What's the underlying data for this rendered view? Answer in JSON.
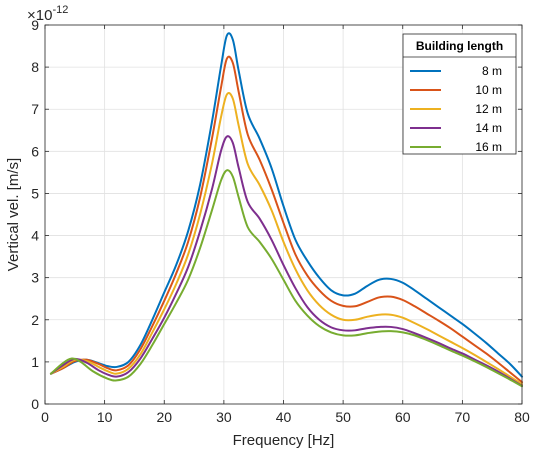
{
  "chart_data": {
    "type": "line",
    "title": "",
    "xlabel": "Frequency [Hz]",
    "ylabel": "Vertical vel. [m/s]",
    "y_exponent_label": "×10",
    "y_exponent_power": "-12",
    "xlim": [
      0,
      80
    ],
    "ylim": [
      0,
      9
    ],
    "xticks": [
      0,
      10,
      20,
      30,
      40,
      50,
      60,
      70,
      80
    ],
    "yticks": [
      0,
      1,
      2,
      3,
      4,
      5,
      6,
      7,
      8,
      9
    ],
    "grid": true,
    "legend": {
      "title": "Building length",
      "position": "top-right"
    },
    "series": [
      {
        "name": "8 m",
        "color": "#0072BD",
        "points": [
          [
            1,
            0.72
          ],
          [
            3,
            0.85
          ],
          [
            5,
            1.0
          ],
          [
            7,
            1.05
          ],
          [
            9,
            0.97
          ],
          [
            10.5,
            0.9
          ],
          [
            12,
            0.88
          ],
          [
            14,
            1.0
          ],
          [
            16,
            1.4
          ],
          [
            18,
            2.0
          ],
          [
            20,
            2.65
          ],
          [
            22,
            3.3
          ],
          [
            24,
            4.1
          ],
          [
            26,
            5.2
          ],
          [
            28,
            6.7
          ],
          [
            29.5,
            8.0
          ],
          [
            30.5,
            8.75
          ],
          [
            31.5,
            8.65
          ],
          [
            32.5,
            7.9
          ],
          [
            34,
            6.9
          ],
          [
            36,
            6.3
          ],
          [
            38,
            5.6
          ],
          [
            40,
            4.7
          ],
          [
            42,
            3.9
          ],
          [
            44,
            3.4
          ],
          [
            46,
            3.0
          ],
          [
            48,
            2.7
          ],
          [
            50,
            2.58
          ],
          [
            52,
            2.62
          ],
          [
            54,
            2.8
          ],
          [
            56,
            2.95
          ],
          [
            58,
            2.97
          ],
          [
            60,
            2.88
          ],
          [
            62,
            2.7
          ],
          [
            64,
            2.5
          ],
          [
            66,
            2.3
          ],
          [
            68,
            2.1
          ],
          [
            70,
            1.9
          ],
          [
            72,
            1.68
          ],
          [
            74,
            1.45
          ],
          [
            76,
            1.2
          ],
          [
            78,
            0.95
          ],
          [
            80,
            0.65
          ]
        ]
      },
      {
        "name": "10 m",
        "color": "#D95319",
        "points": [
          [
            1,
            0.72
          ],
          [
            3,
            0.85
          ],
          [
            5,
            1.02
          ],
          [
            7,
            1.05
          ],
          [
            9,
            0.95
          ],
          [
            10.5,
            0.85
          ],
          [
            12,
            0.8
          ],
          [
            14,
            0.92
          ],
          [
            16,
            1.3
          ],
          [
            18,
            1.85
          ],
          [
            20,
            2.45
          ],
          [
            22,
            3.1
          ],
          [
            24,
            3.85
          ],
          [
            26,
            4.9
          ],
          [
            28,
            6.3
          ],
          [
            29.5,
            7.5
          ],
          [
            30.5,
            8.2
          ],
          [
            31.5,
            8.1
          ],
          [
            32.5,
            7.4
          ],
          [
            34,
            6.4
          ],
          [
            36,
            5.8
          ],
          [
            38,
            5.1
          ],
          [
            40,
            4.3
          ],
          [
            42,
            3.55
          ],
          [
            44,
            3.05
          ],
          [
            46,
            2.7
          ],
          [
            48,
            2.45
          ],
          [
            50,
            2.33
          ],
          [
            52,
            2.32
          ],
          [
            54,
            2.42
          ],
          [
            56,
            2.53
          ],
          [
            58,
            2.55
          ],
          [
            60,
            2.47
          ],
          [
            62,
            2.32
          ],
          [
            64,
            2.15
          ],
          [
            66,
            1.98
          ],
          [
            68,
            1.8
          ],
          [
            70,
            1.6
          ],
          [
            72,
            1.4
          ],
          [
            74,
            1.2
          ],
          [
            76,
            0.98
          ],
          [
            78,
            0.75
          ],
          [
            80,
            0.52
          ]
        ]
      },
      {
        "name": "12 m",
        "color": "#EDB120",
        "points": [
          [
            1,
            0.72
          ],
          [
            3,
            0.88
          ],
          [
            5,
            1.05
          ],
          [
            7,
            1.02
          ],
          [
            9,
            0.88
          ],
          [
            10.5,
            0.78
          ],
          [
            12,
            0.72
          ],
          [
            14,
            0.84
          ],
          [
            16,
            1.18
          ],
          [
            18,
            1.7
          ],
          [
            20,
            2.25
          ],
          [
            22,
            2.85
          ],
          [
            24,
            3.55
          ],
          [
            26,
            4.5
          ],
          [
            28,
            5.7
          ],
          [
            29.5,
            6.8
          ],
          [
            30.5,
            7.35
          ],
          [
            31.5,
            7.25
          ],
          [
            32.5,
            6.6
          ],
          [
            34,
            5.7
          ],
          [
            36,
            5.2
          ],
          [
            38,
            4.6
          ],
          [
            40,
            3.85
          ],
          [
            42,
            3.2
          ],
          [
            44,
            2.7
          ],
          [
            46,
            2.35
          ],
          [
            48,
            2.12
          ],
          [
            50,
            2.0
          ],
          [
            52,
            2.0
          ],
          [
            54,
            2.07
          ],
          [
            56,
            2.12
          ],
          [
            58,
            2.12
          ],
          [
            60,
            2.05
          ],
          [
            62,
            1.92
          ],
          [
            64,
            1.78
          ],
          [
            66,
            1.63
          ],
          [
            68,
            1.48
          ],
          [
            70,
            1.33
          ],
          [
            72,
            1.17
          ],
          [
            74,
            1.0
          ],
          [
            76,
            0.83
          ],
          [
            78,
            0.65
          ],
          [
            80,
            0.47
          ]
        ]
      },
      {
        "name": "14 m",
        "color": "#7E2F8E",
        "points": [
          [
            1,
            0.72
          ],
          [
            3,
            0.92
          ],
          [
            5,
            1.07
          ],
          [
            7,
            0.98
          ],
          [
            9,
            0.8
          ],
          [
            10.5,
            0.7
          ],
          [
            12,
            0.65
          ],
          [
            14,
            0.76
          ],
          [
            16,
            1.08
          ],
          [
            18,
            1.55
          ],
          [
            20,
            2.05
          ],
          [
            22,
            2.62
          ],
          [
            24,
            3.25
          ],
          [
            26,
            4.1
          ],
          [
            28,
            5.1
          ],
          [
            29.5,
            6.0
          ],
          [
            30.5,
            6.35
          ],
          [
            31.5,
            6.2
          ],
          [
            32.5,
            5.6
          ],
          [
            34,
            4.8
          ],
          [
            36,
            4.4
          ],
          [
            38,
            3.9
          ],
          [
            40,
            3.3
          ],
          [
            42,
            2.75
          ],
          [
            44,
            2.3
          ],
          [
            46,
            2.0
          ],
          [
            48,
            1.82
          ],
          [
            50,
            1.75
          ],
          [
            52,
            1.75
          ],
          [
            54,
            1.8
          ],
          [
            56,
            1.83
          ],
          [
            58,
            1.83
          ],
          [
            60,
            1.78
          ],
          [
            62,
            1.68
          ],
          [
            64,
            1.57
          ],
          [
            66,
            1.45
          ],
          [
            68,
            1.32
          ],
          [
            70,
            1.2
          ],
          [
            72,
            1.06
          ],
          [
            74,
            0.92
          ],
          [
            76,
            0.77
          ],
          [
            78,
            0.6
          ],
          [
            80,
            0.43
          ]
        ]
      },
      {
        "name": "16 m",
        "color": "#77AC30",
        "points": [
          [
            1,
            0.72
          ],
          [
            3,
            0.97
          ],
          [
            4.5,
            1.08
          ],
          [
            6,
            1.0
          ],
          [
            8,
            0.78
          ],
          [
            10.5,
            0.6
          ],
          [
            12,
            0.56
          ],
          [
            14,
            0.65
          ],
          [
            16,
            0.95
          ],
          [
            18,
            1.4
          ],
          [
            20,
            1.9
          ],
          [
            22,
            2.4
          ],
          [
            24,
            2.95
          ],
          [
            26,
            3.7
          ],
          [
            28,
            4.6
          ],
          [
            29.5,
            5.3
          ],
          [
            30.5,
            5.55
          ],
          [
            31.5,
            5.4
          ],
          [
            32.5,
            4.9
          ],
          [
            34,
            4.2
          ],
          [
            36,
            3.85
          ],
          [
            38,
            3.45
          ],
          [
            40,
            2.95
          ],
          [
            42,
            2.45
          ],
          [
            44,
            2.1
          ],
          [
            46,
            1.85
          ],
          [
            48,
            1.7
          ],
          [
            50,
            1.63
          ],
          [
            52,
            1.63
          ],
          [
            54,
            1.68
          ],
          [
            56,
            1.72
          ],
          [
            58,
            1.73
          ],
          [
            60,
            1.7
          ],
          [
            62,
            1.63
          ],
          [
            64,
            1.52
          ],
          [
            66,
            1.4
          ],
          [
            68,
            1.27
          ],
          [
            70,
            1.15
          ],
          [
            72,
            1.02
          ],
          [
            74,
            0.88
          ],
          [
            76,
            0.73
          ],
          [
            78,
            0.58
          ],
          [
            80,
            0.42
          ]
        ]
      }
    ]
  }
}
